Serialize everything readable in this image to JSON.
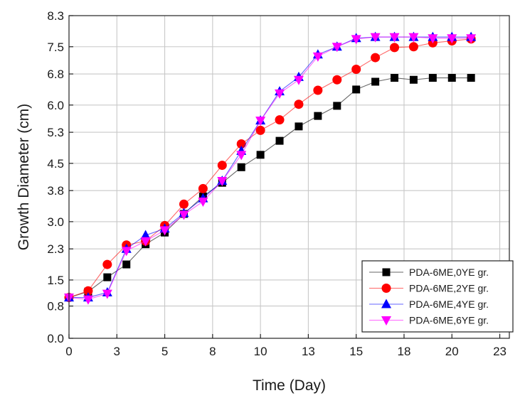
{
  "chart_data": {
    "type": "line",
    "title": "",
    "xlabel": "Time (Day)",
    "ylabel": "Growth Diameter (cm)",
    "xlim": [
      0,
      23
    ],
    "ylim": [
      0,
      8.3
    ],
    "xticks": [
      0,
      2.5,
      5,
      7.5,
      10,
      12.5,
      15,
      17.5,
      20,
      22.5
    ],
    "xtick_labels": [
      "0",
      "3",
      "5",
      "8",
      "10",
      "13",
      "15",
      "18",
      "20",
      "23"
    ],
    "yticks": [
      0,
      0.83,
      1.5,
      2.3,
      3.0,
      3.8,
      4.5,
      5.3,
      6.0,
      6.8,
      7.5,
      8.3
    ],
    "ytick_labels": [
      "0.0",
      "0.8",
      "1.5",
      "2.3",
      "3.0",
      "3.8",
      "4.5",
      "5.3",
      "6.0",
      "6.8",
      "7.5",
      "8.3"
    ],
    "grid": true,
    "legend_position": "bottom-right",
    "series": [
      {
        "name": "PDA-6ME,0YE gr.",
        "color": "#000000",
        "marker": "square",
        "x": [
          0,
          1,
          2,
          3,
          4,
          5,
          6,
          7,
          8,
          9,
          10,
          11,
          12,
          13,
          14,
          15,
          16,
          17,
          18,
          19,
          20,
          21
        ],
        "y": [
          1.05,
          1.2,
          1.57,
          1.9,
          2.42,
          2.72,
          3.2,
          3.65,
          4.0,
          4.4,
          4.72,
          5.08,
          5.45,
          5.72,
          5.98,
          6.4,
          6.6,
          6.7,
          6.65,
          6.7,
          6.7,
          6.7
        ]
      },
      {
        "name": "PDA-6ME,2YE gr.",
        "color": "#ff0000",
        "marker": "circle",
        "x": [
          0,
          1,
          2,
          3,
          4,
          5,
          6,
          7,
          8,
          9,
          10,
          11,
          12,
          13,
          14,
          15,
          16,
          17,
          18,
          19,
          20,
          21
        ],
        "y": [
          1.05,
          1.22,
          1.9,
          2.4,
          2.5,
          2.9,
          3.45,
          3.85,
          4.45,
          5.0,
          5.35,
          5.62,
          6.02,
          6.38,
          6.65,
          6.92,
          7.22,
          7.48,
          7.5,
          7.6,
          7.65,
          7.7
        ]
      },
      {
        "name": "PDA-6ME,4YE gr.",
        "color": "#0000ff",
        "marker": "triangle-up",
        "x": [
          0,
          1,
          2,
          3,
          4,
          5,
          6,
          7,
          8,
          9,
          10,
          11,
          12,
          13,
          14,
          15,
          16,
          17,
          18,
          19,
          20,
          21
        ],
        "y": [
          1.05,
          1.05,
          1.18,
          2.3,
          2.65,
          2.82,
          3.22,
          3.6,
          4.05,
          4.82,
          5.6,
          6.35,
          6.72,
          7.3,
          7.5,
          7.72,
          7.75,
          7.75,
          7.75,
          7.75,
          7.75,
          7.75
        ]
      },
      {
        "name": "PDA-6ME,6YE gr.",
        "color": "#ff00ff",
        "marker": "triangle-down",
        "x": [
          0,
          1,
          2,
          3,
          4,
          5,
          6,
          7,
          8,
          9,
          10,
          11,
          12,
          13,
          14,
          15,
          16,
          17,
          18,
          19,
          20,
          21
        ],
        "y": [
          1.05,
          1.0,
          1.15,
          2.25,
          2.5,
          2.78,
          3.18,
          3.52,
          4.05,
          4.72,
          5.6,
          6.3,
          6.65,
          7.25,
          7.5,
          7.7,
          7.75,
          7.75,
          7.75,
          7.72,
          7.72,
          7.72
        ]
      }
    ]
  }
}
